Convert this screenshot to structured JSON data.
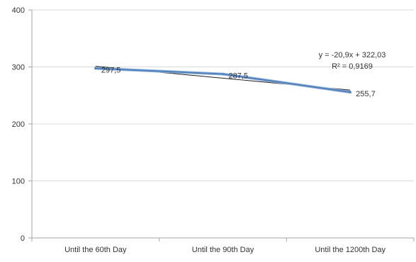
{
  "chart_data": {
    "type": "line",
    "categories": [
      "Until the 60th Day",
      "Until the 90th Day",
      "Until the 1200th Day"
    ],
    "series": [
      {
        "values": [
          297.5,
          287.5,
          255.7
        ],
        "data_labels": [
          "297,5",
          "287,5",
          "255,7"
        ]
      }
    ],
    "trendline": {
      "type": "linear",
      "slope": -20.9,
      "intercept": 322.03,
      "equation": "y = -20,9x + 322,03",
      "r_squared": "R² = 0,9169"
    },
    "ylim": [
      0,
      400
    ],
    "yticks": [
      0,
      100,
      200,
      300,
      400
    ],
    "ytick_labels": [
      "0",
      "100",
      "200",
      "300",
      "400"
    ],
    "grid": true,
    "legend": "none",
    "title": "",
    "xlabel": "",
    "ylabel": "",
    "colors": {
      "series": "#4f81bd",
      "series_outline": "#95b3d7",
      "trendline": "#1f1f1f",
      "grid": "#d9d9d9",
      "axis": "#a6a6a6",
      "text": "#333333"
    }
  }
}
